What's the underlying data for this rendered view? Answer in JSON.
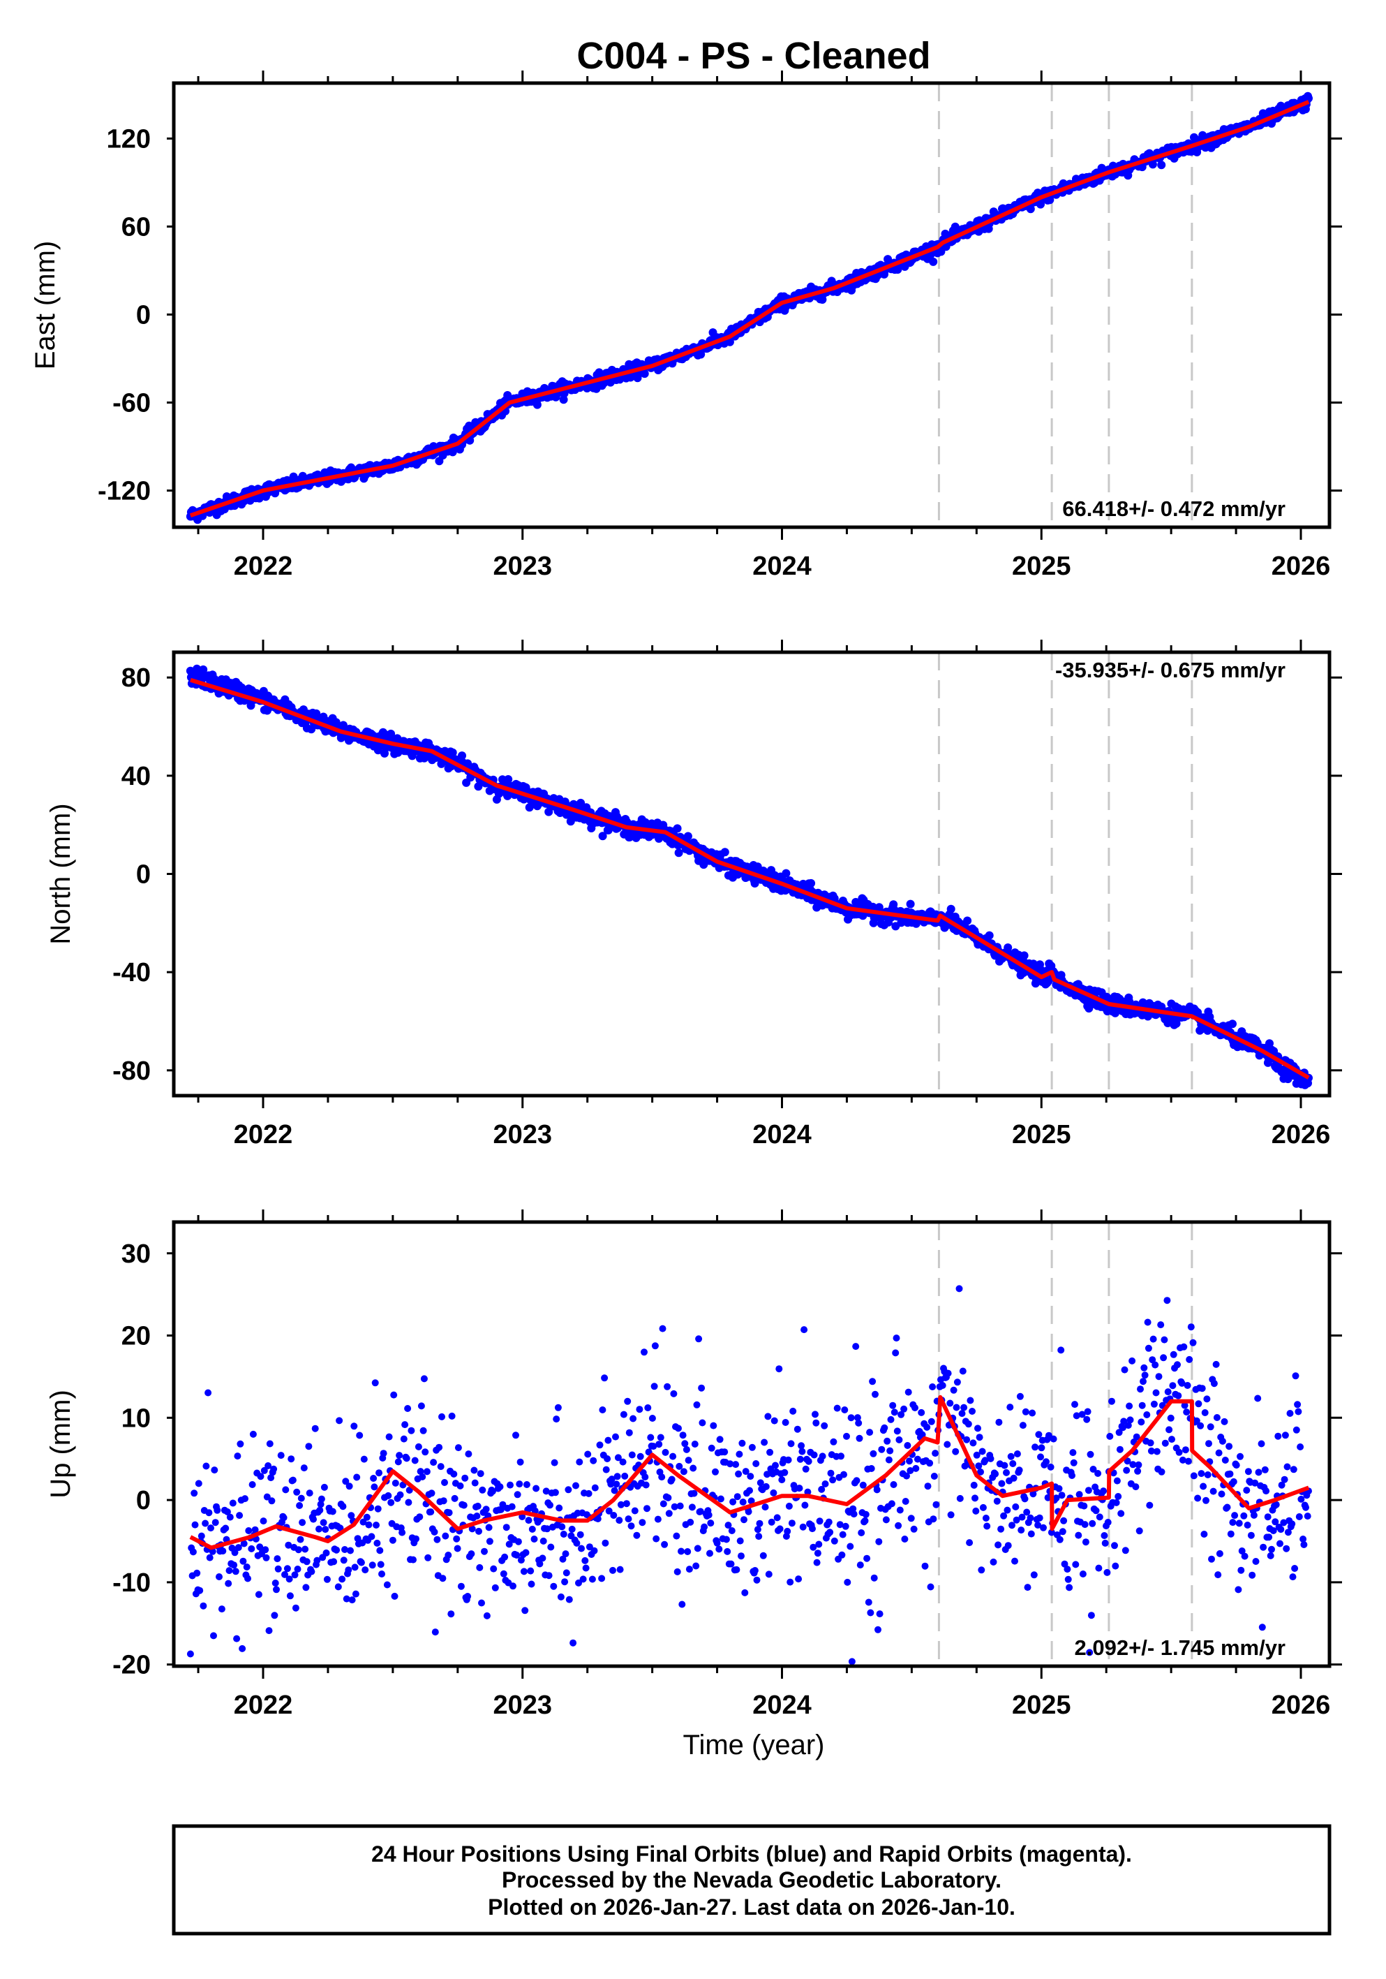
{
  "chart_data": {
    "type": "scatter",
    "title": "C004  - PS - Cleaned",
    "xlabel": "Time (year)",
    "x_ticks": [
      2022,
      2023,
      2024,
      2025,
      2026
    ],
    "xlim": [
      2021.65,
      2026.1
    ],
    "data_range": [
      2021.72,
      2026.03
    ],
    "event_lines": [
      2024.605,
      2025.04,
      2025.26,
      2025.58
    ],
    "colors": {
      "points": "#0000ff",
      "model": "#ff0000",
      "events": "#c8c8c8"
    },
    "panels": [
      {
        "name": "east",
        "ylabel": "East (mm)",
        "ylim": [
          -145,
          157.8
        ],
        "y_ticks": [
          -120,
          -60,
          0,
          60,
          120
        ],
        "rate_text": "66.418+/- 0.472 mm/yr",
        "rate_position": "bottom-right",
        "noise_sd": 2.2,
        "model": [
          [
            2021.72,
            -137
          ],
          [
            2022.0,
            -120
          ],
          [
            2022.5,
            -103
          ],
          [
            2022.75,
            -88
          ],
          [
            2022.95,
            -60
          ],
          [
            2023.5,
            -35
          ],
          [
            2023.8,
            -15
          ],
          [
            2024.0,
            8
          ],
          [
            2024.2,
            18
          ],
          [
            2024.6,
            46
          ],
          [
            2024.62,
            49
          ],
          [
            2025.0,
            80
          ],
          [
            2025.26,
            97
          ],
          [
            2025.58,
            115
          ],
          [
            2025.8,
            128
          ],
          [
            2026.03,
            145
          ]
        ]
      },
      {
        "name": "north",
        "ylabel": "North (mm)",
        "ylim": [
          -90.3,
          90.3
        ],
        "y_ticks": [
          -80,
          -40,
          0,
          40,
          80
        ],
        "rate_text": "-35.935+/- 0.675 mm/yr",
        "rate_position": "top-right",
        "noise_sd": 1.8,
        "model": [
          [
            2021.72,
            79
          ],
          [
            2022.0,
            70
          ],
          [
            2022.3,
            58
          ],
          [
            2022.5,
            53
          ],
          [
            2022.65,
            50
          ],
          [
            2022.9,
            36
          ],
          [
            2023.2,
            26
          ],
          [
            2023.4,
            19
          ],
          [
            2023.55,
            17
          ],
          [
            2023.75,
            5
          ],
          [
            2024.0,
            -4
          ],
          [
            2024.25,
            -14
          ],
          [
            2024.6,
            -19
          ],
          [
            2024.61,
            -17
          ],
          [
            2025.0,
            -42
          ],
          [
            2025.04,
            -40
          ],
          [
            2025.05,
            -43
          ],
          [
            2025.26,
            -53
          ],
          [
            2025.58,
            -58
          ],
          [
            2025.85,
            -72
          ],
          [
            2026.03,
            -83
          ]
        ]
      },
      {
        "name": "up",
        "ylabel": "Up (mm)",
        "ylim": [
          -20.2,
          33.8
        ],
        "y_ticks": [
          -20,
          -10,
          0,
          10,
          20,
          30
        ],
        "rate_text": "2.092+/- 1.745 mm/yr",
        "rate_position": "bottom-right",
        "noise_sd": 5.5,
        "model": [
          [
            2021.72,
            -4.5
          ],
          [
            2021.8,
            -5.8
          ],
          [
            2021.95,
            -4.5
          ],
          [
            2022.05,
            -3.2
          ],
          [
            2022.2,
            -4.5
          ],
          [
            2022.25,
            -5
          ],
          [
            2022.35,
            -3
          ],
          [
            2022.5,
            3.5
          ],
          [
            2022.6,
            1
          ],
          [
            2022.75,
            -3.5
          ],
          [
            2022.85,
            -2.5
          ],
          [
            2023.0,
            -1.5
          ],
          [
            2023.15,
            -2.5
          ],
          [
            2023.25,
            -2.5
          ],
          [
            2023.35,
            0
          ],
          [
            2023.5,
            5.5
          ],
          [
            2023.6,
            3
          ],
          [
            2023.8,
            -1.5
          ],
          [
            2024.0,
            0.5
          ],
          [
            2024.1,
            0.5
          ],
          [
            2024.25,
            -0.5
          ],
          [
            2024.4,
            3
          ],
          [
            2024.55,
            7.5
          ],
          [
            2024.6,
            7
          ],
          [
            2024.61,
            12.5
          ],
          [
            2024.75,
            3
          ],
          [
            2024.85,
            0.5
          ],
          [
            2025.0,
            1.5
          ],
          [
            2025.04,
            2
          ],
          [
            2025.041,
            -3.5
          ],
          [
            2025.1,
            0
          ],
          [
            2025.26,
            0.3
          ],
          [
            2025.261,
            3.5
          ],
          [
            2025.35,
            6
          ],
          [
            2025.5,
            12
          ],
          [
            2025.58,
            12
          ],
          [
            2025.581,
            6
          ],
          [
            2025.65,
            4
          ],
          [
            2025.8,
            -1
          ],
          [
            2025.9,
            0
          ],
          [
            2026.03,
            1.5
          ]
        ]
      }
    ]
  },
  "footer": {
    "line1": "24 Hour Positions Using Final Orbits (blue) and Rapid Orbits (magenta).",
    "line2": "Processed by the Nevada Geodetic Laboratory.",
    "line3": "Plotted on 2026-Jan-27. Last data on 2026-Jan-10."
  }
}
